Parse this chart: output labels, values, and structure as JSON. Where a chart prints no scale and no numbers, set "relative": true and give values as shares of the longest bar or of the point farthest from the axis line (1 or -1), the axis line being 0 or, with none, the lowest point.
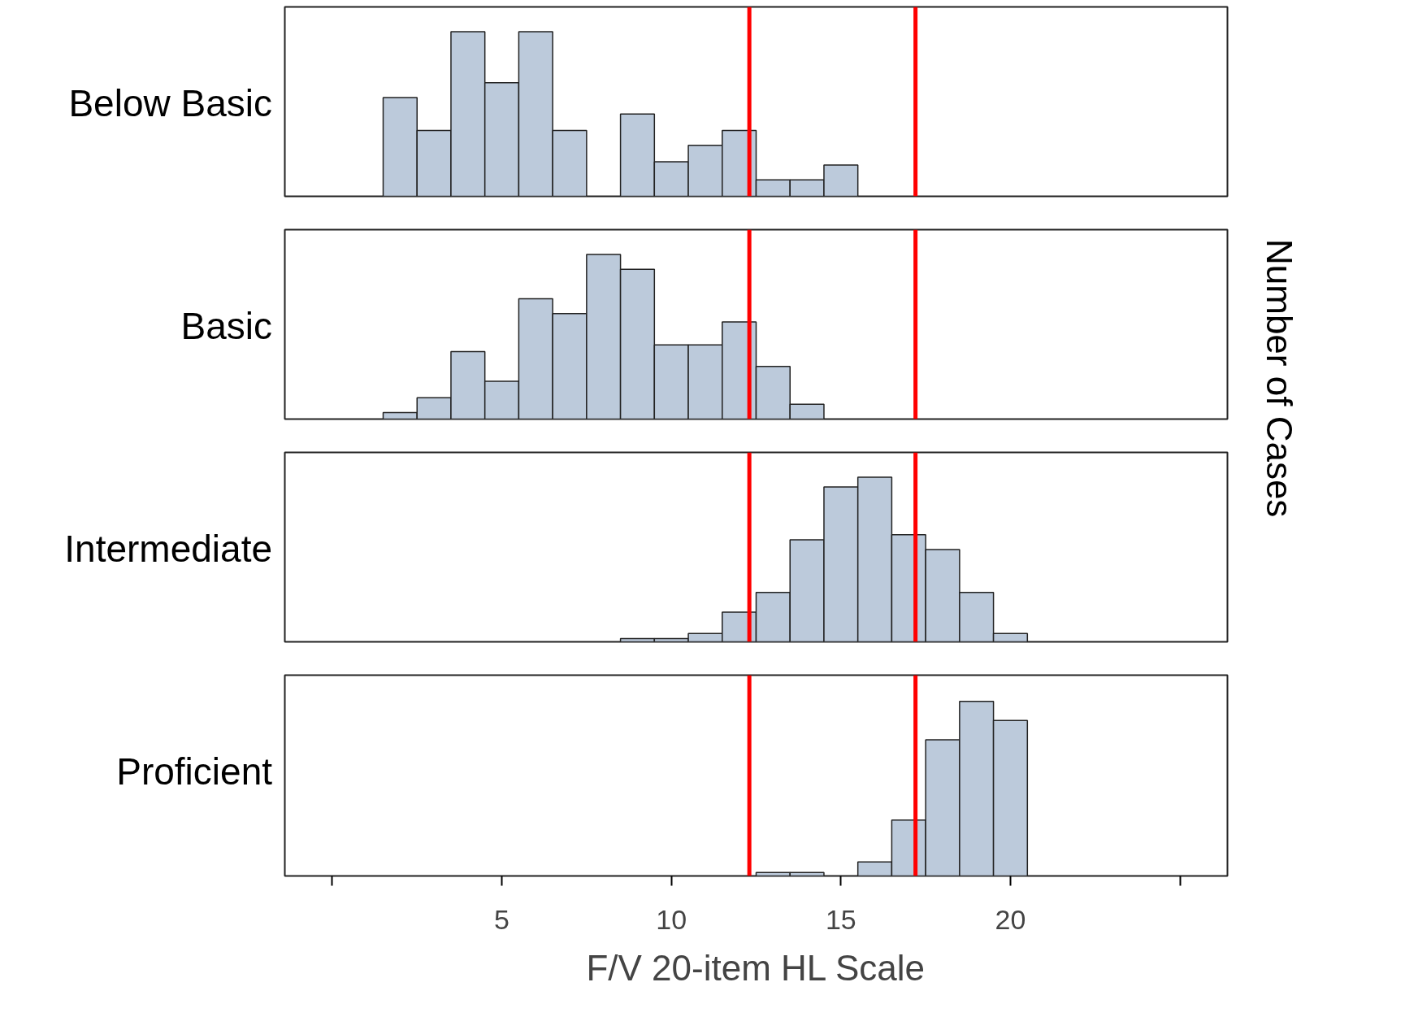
{
  "chart_data": [
    {
      "type": "bar",
      "title": "Below Basic",
      "relative": true,
      "xlim": [
        -1.4,
        26.4
      ],
      "tick_labels": false,
      "grid": false,
      "color": "#bccadb",
      "x": [
        2,
        3,
        4,
        5,
        6,
        7,
        9,
        10,
        11,
        12,
        13,
        14,
        15
      ],
      "values": [
        0.6,
        0.4,
        1,
        0.69,
        1,
        0.4,
        0.5,
        0.21,
        0.31,
        0.4,
        0.1,
        0.1,
        0.19
      ],
      "ref_lines": [
        {
          "axis": "x",
          "value": 12.3,
          "color": "#ff0000"
        },
        {
          "axis": "x",
          "value": 17.2,
          "color": "#ff0000"
        }
      ]
    },
    {
      "type": "bar",
      "title": "Basic",
      "ylabel": "Number of Cases",
      "relative": true,
      "xlim": [
        -1.4,
        26.4
      ],
      "tick_labels": false,
      "grid": false,
      "color": "#bccadb",
      "x": [
        2,
        3,
        4,
        5,
        6,
        7,
        8,
        9,
        10,
        11,
        12,
        13,
        14
      ],
      "values": [
        0.04,
        0.13,
        0.41,
        0.23,
        0.73,
        0.64,
        1,
        0.91,
        0.45,
        0.45,
        0.59,
        0.32,
        0.09
      ],
      "ref_lines": [
        {
          "axis": "x",
          "value": 12.3,
          "color": "#ff0000"
        },
        {
          "axis": "x",
          "value": 17.2,
          "color": "#ff0000"
        }
      ]
    },
    {
      "type": "bar",
      "title": "Intermediate",
      "relative": true,
      "xlim": [
        -1.4,
        26.4
      ],
      "tick_labels": false,
      "grid": false,
      "color": "#bccadb",
      "x": [
        9,
        10,
        11,
        12,
        13,
        14,
        15,
        16,
        17,
        18,
        19,
        20
      ],
      "values": [
        0.02,
        0.02,
        0.05,
        0.18,
        0.3,
        0.62,
        0.94,
        1,
        0.65,
        0.56,
        0.3,
        0.05
      ],
      "ref_lines": [
        {
          "axis": "x",
          "value": 12.3,
          "color": "#ff0000"
        },
        {
          "axis": "x",
          "value": 17.2,
          "color": "#ff0000"
        }
      ]
    },
    {
      "type": "bar",
      "title": "Proficient",
      "xlabel": "F/V 20-item HL Scale",
      "relative": true,
      "xlim": [
        -1.4,
        26.4
      ],
      "tick_labels": "x",
      "grid": false,
      "color": "#bccadb",
      "xticks": [
        {
          "value": 0,
          "label": null
        },
        5,
        10,
        15,
        20,
        {
          "value": 25,
          "label": null
        }
      ],
      "x": [
        13,
        14,
        16,
        17,
        18,
        19,
        20
      ],
      "values": [
        0.02,
        0.02,
        0.08,
        0.32,
        0.78,
        1,
        0.89
      ],
      "ref_lines": [
        {
          "axis": "x",
          "value": 12.3,
          "color": "#ff0000"
        },
        {
          "axis": "x",
          "value": 17.2,
          "color": "#ff0000"
        }
      ]
    }
  ]
}
